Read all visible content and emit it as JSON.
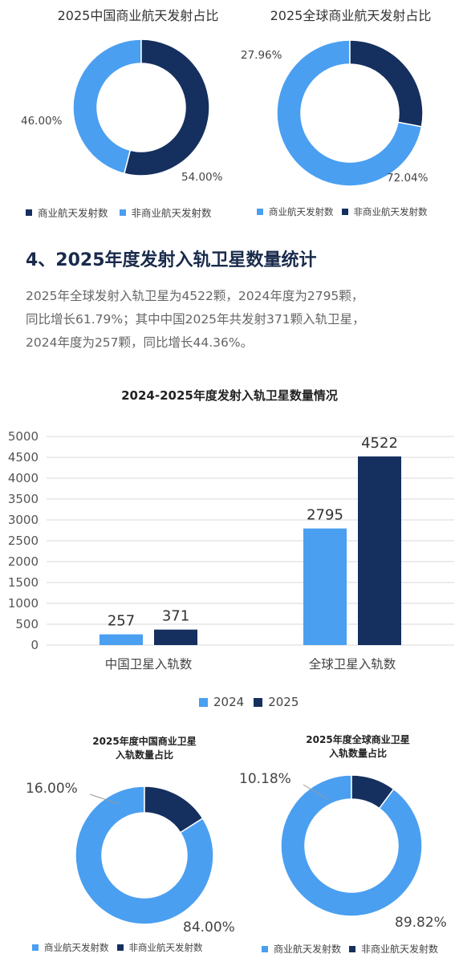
{
  "colors": {
    "dark": "#15305f",
    "light": "#4a9ff0",
    "grid": "#d9d9d9"
  },
  "heading": "4、2025年度发射入轨卫星数量统计",
  "paragraph": [
    "2025年全球发射入轨卫星为4522颗，2024年度为2795颗，",
    "同比增长61.79%；其中中国2025年共发射371颗入轨卫星，",
    "2024年度为257颗，同比增长44.36%。"
  ],
  "chart_data": [
    {
      "type": "pie",
      "donut": true,
      "title": "2025中国商业航天发射占比",
      "labels": [
        "商业航天发射数",
        "非商业航天发射数"
      ],
      "values": [
        46.0,
        54.0
      ],
      "value_labels": [
        "46.00%",
        "54.00%"
      ],
      "colors": [
        "#4a9ff0",
        "#15305f"
      ]
    },
    {
      "type": "pie",
      "donut": true,
      "title": "2025全球商业航天发射占比",
      "labels": [
        "商业航天发射数",
        "非商业航天发射数"
      ],
      "values": [
        72.04,
        27.96
      ],
      "value_labels": [
        "72.04%",
        "27.96%"
      ],
      "colors": [
        "#4a9ff0",
        "#15305f"
      ]
    },
    {
      "type": "bar",
      "title": "2024-2025年度发射入轨卫星数量情况",
      "categories": [
        "中国卫星入轨数",
        "全球卫星入轨数"
      ],
      "series": [
        {
          "name": "2024",
          "values": [
            257,
            2795
          ],
          "color": "#4a9ff0"
        },
        {
          "name": "2025",
          "values": [
            371,
            4522
          ],
          "color": "#15305f"
        }
      ],
      "ylim": [
        0,
        5000
      ],
      "yticks": [
        "0",
        "500",
        "1000",
        "1500",
        "2000",
        "2500",
        "3000",
        "3500",
        "4000",
        "4500",
        "5000"
      ],
      "grid": true,
      "legend": "bottom"
    },
    {
      "type": "pie",
      "donut": true,
      "title_lines": [
        "2025年度中国商业卫星",
        "入轨数量占比"
      ],
      "labels": [
        "商业航天发射数",
        "非商业航天发射数"
      ],
      "values": [
        84.0,
        16.0
      ],
      "value_labels": [
        "84.00%",
        "16.00%"
      ],
      "colors": [
        "#4a9ff0",
        "#15305f"
      ]
    },
    {
      "type": "pie",
      "donut": true,
      "title_lines": [
        "2025年度全球商业卫星",
        "入轨数量占比"
      ],
      "labels": [
        "商业航天发射数",
        "非商业航天发射数"
      ],
      "values": [
        89.82,
        10.18
      ],
      "value_labels": [
        "89.82%",
        "10.18%"
      ],
      "colors": [
        "#4a9ff0",
        "#15305f"
      ]
    }
  ]
}
